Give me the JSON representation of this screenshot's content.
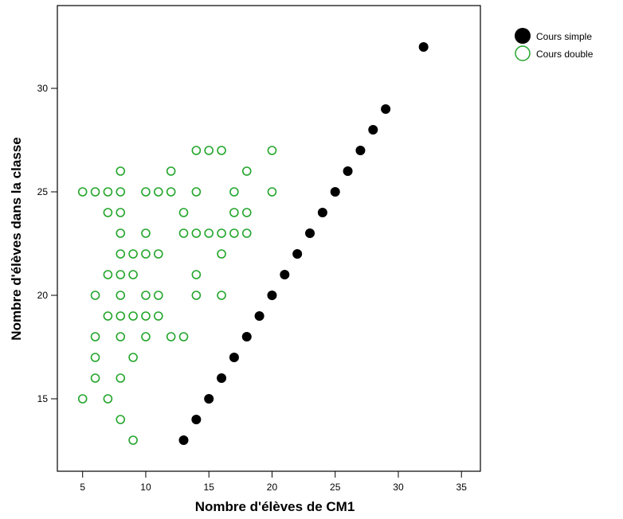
{
  "chart_data": {
    "type": "scatter",
    "xlabel": "Nombre d'élèves de CM1",
    "ylabel": "Nombre d'élèves dans la classe",
    "xlim": [
      3,
      36.5
    ],
    "ylim": [
      11.5,
      34
    ],
    "xticks": [
      5,
      10,
      15,
      20,
      25,
      30,
      35
    ],
    "yticks": [
      15,
      20,
      25,
      30
    ],
    "grid": false,
    "legend_position": "top-right, outside plot",
    "series": [
      {
        "name": "Cours simple",
        "marker": "filled-circle",
        "color": "#000000",
        "points": [
          [
            13,
            13
          ],
          [
            14,
            14
          ],
          [
            15,
            15
          ],
          [
            16,
            16
          ],
          [
            17,
            17
          ],
          [
            18,
            18
          ],
          [
            19,
            19
          ],
          [
            20,
            20
          ],
          [
            21,
            21
          ],
          [
            22,
            22
          ],
          [
            23,
            23
          ],
          [
            24,
            24
          ],
          [
            25,
            25
          ],
          [
            26,
            26
          ],
          [
            27,
            27
          ],
          [
            28,
            28
          ],
          [
            29,
            29
          ],
          [
            32,
            32
          ]
        ]
      },
      {
        "name": "Cours double",
        "marker": "open-circle",
        "color": "#22a52a",
        "points": [
          [
            9,
            13
          ],
          [
            8,
            14
          ],
          [
            5,
            15
          ],
          [
            7,
            15
          ],
          [
            6,
            16
          ],
          [
            8,
            16
          ],
          [
            6,
            17
          ],
          [
            9,
            17
          ],
          [
            6,
            18
          ],
          [
            8,
            18
          ],
          [
            10,
            18
          ],
          [
            12,
            18
          ],
          [
            13,
            18
          ],
          [
            7,
            19
          ],
          [
            8,
            19
          ],
          [
            9,
            19
          ],
          [
            10,
            19
          ],
          [
            11,
            19
          ],
          [
            6,
            20
          ],
          [
            8,
            20
          ],
          [
            10,
            20
          ],
          [
            11,
            20
          ],
          [
            14,
            20
          ],
          [
            16,
            20
          ],
          [
            7,
            21
          ],
          [
            8,
            21
          ],
          [
            9,
            21
          ],
          [
            14,
            21
          ],
          [
            8,
            22
          ],
          [
            9,
            22
          ],
          [
            10,
            22
          ],
          [
            11,
            22
          ],
          [
            16,
            22
          ],
          [
            8,
            23
          ],
          [
            10,
            23
          ],
          [
            13,
            23
          ],
          [
            14,
            23
          ],
          [
            15,
            23
          ],
          [
            16,
            23
          ],
          [
            17,
            23
          ],
          [
            18,
            23
          ],
          [
            7,
            24
          ],
          [
            8,
            24
          ],
          [
            13,
            24
          ],
          [
            17,
            24
          ],
          [
            18,
            24
          ],
          [
            5,
            25
          ],
          [
            6,
            25
          ],
          [
            7,
            25
          ],
          [
            8,
            25
          ],
          [
            10,
            25
          ],
          [
            11,
            25
          ],
          [
            12,
            25
          ],
          [
            14,
            25
          ],
          [
            17,
            25
          ],
          [
            20,
            25
          ],
          [
            8,
            26
          ],
          [
            12,
            26
          ],
          [
            18,
            26
          ],
          [
            14,
            27
          ],
          [
            15,
            27
          ],
          [
            16,
            27
          ],
          [
            20,
            27
          ]
        ]
      }
    ]
  }
}
